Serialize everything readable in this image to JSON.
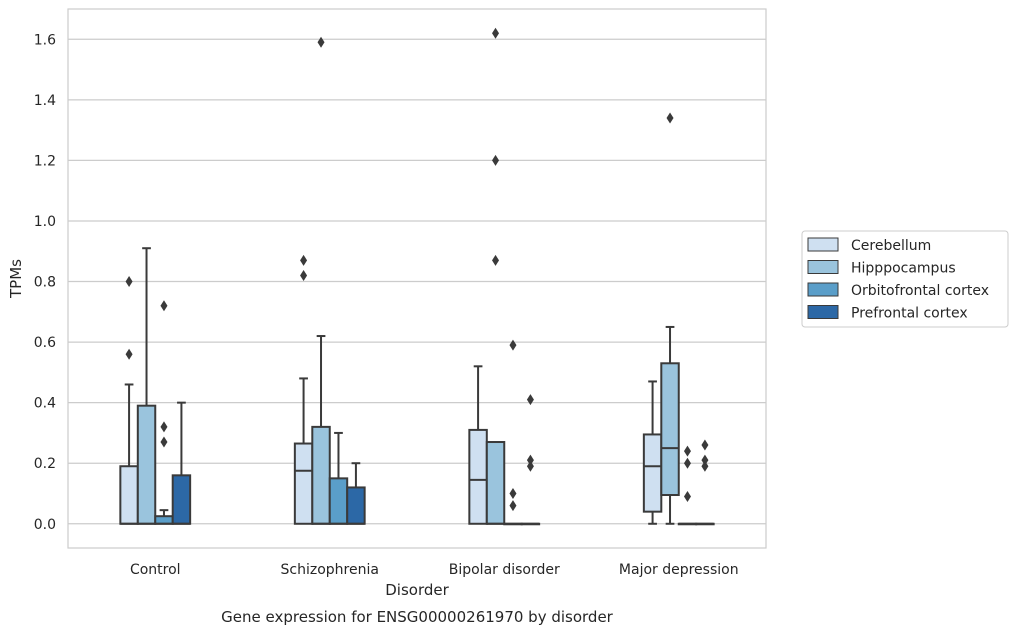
{
  "caption": "Gene expression for ENSG00000261970 by disorder",
  "chart_data": {
    "type": "boxplot",
    "title": "",
    "xlabel": "Disorder",
    "ylabel": "TPMs",
    "ylim": [
      -0.08,
      1.7
    ],
    "yticks": [
      0.0,
      0.2,
      0.4,
      0.6,
      0.8,
      1.0,
      1.2,
      1.4,
      1.6
    ],
    "ytick_labels": [
      "0.0",
      "0.2",
      "0.4",
      "0.6",
      "0.8",
      "1.0",
      "1.2",
      "1.4",
      "1.6"
    ],
    "grid": "horizontal",
    "legend_placement": "right",
    "categories": [
      "Control",
      "Schizophrenia",
      "Bipolar disorder",
      "Major depression"
    ],
    "series": [
      {
        "name": "Cerebellum",
        "color": "#cfe0f1",
        "boxes": [
          {
            "whislo": 0.0,
            "q1": 0.0,
            "med": 0.0,
            "q3": 0.19,
            "whishi": 0.46,
            "fliers": [
              0.56,
              0.8
            ]
          },
          {
            "whislo": 0.0,
            "q1": 0.0,
            "med": 0.175,
            "q3": 0.265,
            "whishi": 0.48,
            "fliers": [
              0.82,
              0.87
            ]
          },
          {
            "whislo": 0.0,
            "q1": 0.0,
            "med": 0.145,
            "q3": 0.31,
            "whishi": 0.52,
            "fliers": []
          },
          {
            "whislo": 0.0,
            "q1": 0.04,
            "med": 0.19,
            "q3": 0.295,
            "whishi": 0.47,
            "fliers": []
          }
        ]
      },
      {
        "name": "Hipppocampus",
        "color": "#9ac4dd",
        "boxes": [
          {
            "whislo": 0.0,
            "q1": 0.0,
            "med": 0.0,
            "q3": 0.39,
            "whishi": 0.91,
            "fliers": []
          },
          {
            "whislo": 0.0,
            "q1": 0.0,
            "med": 0.0,
            "q3": 0.32,
            "whishi": 0.62,
            "fliers": [
              1.59
            ]
          },
          {
            "whislo": 0.0,
            "q1": 0.0,
            "med": 0.0,
            "q3": 0.27,
            "whishi": 0.27,
            "fliers": [
              0.87,
              1.2,
              1.62
            ]
          },
          {
            "whislo": 0.0,
            "q1": 0.095,
            "med": 0.25,
            "q3": 0.53,
            "whishi": 0.65,
            "fliers": [
              1.34
            ]
          }
        ]
      },
      {
        "name": "Orbitofrontal cortex",
        "color": "#5a9ec9",
        "boxes": [
          {
            "whislo": 0.0,
            "q1": 0.0,
            "med": 0.0,
            "q3": 0.025,
            "whishi": 0.045,
            "fliers": [
              0.27,
              0.32,
              0.72
            ]
          },
          {
            "whislo": 0.0,
            "q1": 0.0,
            "med": 0.0,
            "q3": 0.15,
            "whishi": 0.3,
            "fliers": []
          },
          {
            "whislo": 0.0,
            "q1": 0.0,
            "med": 0.0,
            "q3": 0.0,
            "whishi": 0.0,
            "fliers": [
              0.06,
              0.1,
              0.59
            ]
          },
          {
            "whislo": 0.0,
            "q1": 0.0,
            "med": 0.0,
            "q3": 0.0,
            "whishi": 0.0,
            "fliers": [
              0.09,
              0.2,
              0.24
            ]
          }
        ]
      },
      {
        "name": "Prefrontal cortex",
        "color": "#2c68a6",
        "boxes": [
          {
            "whislo": 0.0,
            "q1": 0.0,
            "med": 0.0,
            "q3": 0.16,
            "whishi": 0.4,
            "fliers": []
          },
          {
            "whislo": 0.0,
            "q1": 0.0,
            "med": 0.0,
            "q3": 0.12,
            "whishi": 0.2,
            "fliers": []
          },
          {
            "whislo": 0.0,
            "q1": 0.0,
            "med": 0.0,
            "q3": 0.0,
            "whishi": 0.0,
            "fliers": [
              0.19,
              0.21,
              0.41
            ]
          },
          {
            "whislo": 0.0,
            "q1": 0.0,
            "med": 0.0,
            "q3": 0.0,
            "whishi": 0.0,
            "fliers": [
              0.19,
              0.21,
              0.26
            ]
          }
        ]
      }
    ]
  }
}
